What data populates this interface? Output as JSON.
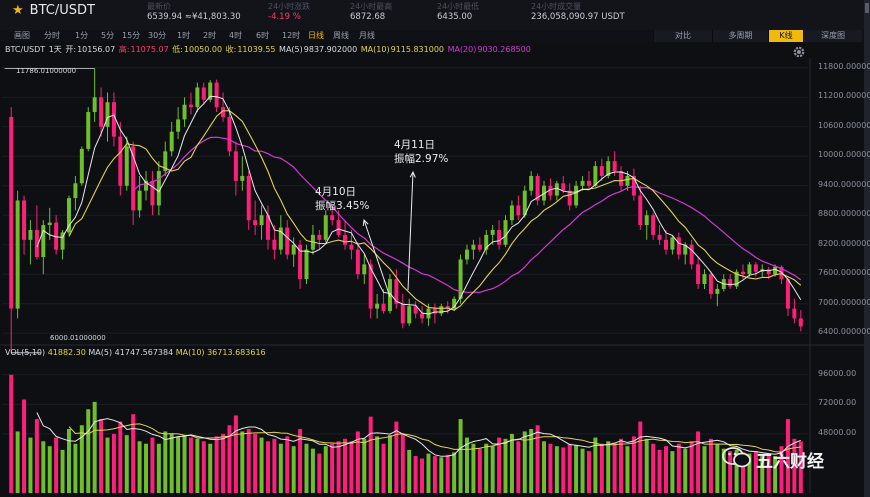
{
  "header": {
    "symbol": "BTC/USDT",
    "stats": [
      {
        "label": "最新价",
        "value": "6539.94 ≈¥41,803.30",
        "down": false
      },
      {
        "label": "24小时涨跌",
        "value": "-4.19 %",
        "down": true
      },
      {
        "label": "24小时最高",
        "value": "6872.68",
        "down": false
      },
      {
        "label": "24小时最低",
        "value": "6435.00",
        "down": false
      },
      {
        "label": "24小时成交量",
        "value": "236,058,090.97 USDT",
        "down": false
      }
    ]
  },
  "toolbar": {
    "intervals": [
      "分时",
      "1分",
      "5分",
      "15分",
      "30分",
      "1时",
      "2时",
      "4时",
      "6时",
      "12时",
      "日线",
      "周线",
      "月线"
    ],
    "active_interval": "日线",
    "view_tabs": [
      "对比",
      "多周期",
      "K线",
      "深度图"
    ],
    "active_view": "K线",
    "first_tab": "画图"
  },
  "legend": {
    "pair": "BTC/USDT",
    "period": "1天",
    "open_label": "开:",
    "open": "10156.07",
    "high_label": "高:",
    "high": "11075.07",
    "low_label": "低:",
    "low": "10050.00",
    "close_label": "收:",
    "close": "11039.55",
    "ma5_label": "MA(5)",
    "ma5": "9837.902000",
    "ma10_label": "MA(10)",
    "ma10": "9115.831000",
    "ma20_label": "MA(20)",
    "ma20": "9030.268500"
  },
  "vol_legend": {
    "label": "VOL(5,10)",
    "vol": "41882.30",
    "ma5_label": "MA(5)",
    "ma5": "41747.567384",
    "ma10_label": "MA(10)",
    "ma10": "36713.683616"
  },
  "price_marks": {
    "max": "11786.01000000",
    "min": "6000.01000000"
  },
  "annotations": [
    {
      "line1": "4月10日",
      "line2": "振幅3.45%"
    },
    {
      "line1": "4月11日",
      "line2": "振幅2.97%"
    }
  ],
  "watermark": "五六财经",
  "colors": {
    "up": "#6fbf2c",
    "down": "#ff1f7a",
    "ma5": "#e8e8e8",
    "ma10": "#e0d44a",
    "ma20": "#d43ad4",
    "accent": "#f0b90b"
  },
  "chart_data": {
    "type": "candlestick",
    "y_axis": {
      "ticks": [
        "11800.000000",
        "11200.000000",
        "10600.000000",
        "10000.000000",
        "9400.000000",
        "8800.000000",
        "8200.000000",
        "7600.000000",
        "7000.000000",
        "6400.000000"
      ],
      "min": 6200,
      "max": 12000
    },
    "volume_axis": {
      "ticks": [
        "96000.00",
        "72000.00",
        "48000.00"
      ],
      "max": 108000
    },
    "candles": [
      {
        "o": 10800,
        "h": 11000,
        "l": 6000,
        "c": 6900,
        "v": 96000
      },
      {
        "o": 6900,
        "h": 9300,
        "l": 6700,
        "c": 9100,
        "v": 50000
      },
      {
        "o": 9100,
        "h": 9200,
        "l": 8000,
        "c": 8300,
        "v": 76000
      },
      {
        "o": 8300,
        "h": 8700,
        "l": 7800,
        "c": 8500,
        "v": 45000
      },
      {
        "o": 8500,
        "h": 9000,
        "l": 7900,
        "c": 7950,
        "v": 60000
      },
      {
        "o": 7950,
        "h": 8700,
        "l": 7600,
        "c": 8600,
        "v": 42000
      },
      {
        "o": 8600,
        "h": 8950,
        "l": 8300,
        "c": 8650,
        "v": 38000
      },
      {
        "o": 8650,
        "h": 8800,
        "l": 8000,
        "c": 8100,
        "v": 45000
      },
      {
        "o": 8100,
        "h": 8500,
        "l": 7900,
        "c": 8450,
        "v": 35000
      },
      {
        "o": 8450,
        "h": 9200,
        "l": 8400,
        "c": 9150,
        "v": 52000
      },
      {
        "o": 9150,
        "h": 9600,
        "l": 8900,
        "c": 9450,
        "v": 40000
      },
      {
        "o": 9450,
        "h": 10200,
        "l": 9400,
        "c": 10150,
        "v": 55000
      },
      {
        "o": 10150,
        "h": 11000,
        "l": 10100,
        "c": 10900,
        "v": 68000
      },
      {
        "o": 10900,
        "h": 11786,
        "l": 10700,
        "c": 11200,
        "v": 74000
      },
      {
        "o": 11200,
        "h": 11400,
        "l": 10400,
        "c": 10600,
        "v": 60000
      },
      {
        "o": 10600,
        "h": 11300,
        "l": 10300,
        "c": 11100,
        "v": 45000
      },
      {
        "o": 11100,
        "h": 11300,
        "l": 10200,
        "c": 10400,
        "v": 48000
      },
      {
        "o": 10400,
        "h": 10700,
        "l": 9200,
        "c": 9400,
        "v": 58000
      },
      {
        "o": 9400,
        "h": 10400,
        "l": 9300,
        "c": 10200,
        "v": 47000
      },
      {
        "o": 10200,
        "h": 10300,
        "l": 8600,
        "c": 8900,
        "v": 64000
      },
      {
        "o": 8900,
        "h": 9600,
        "l": 8750,
        "c": 9300,
        "v": 42000
      },
      {
        "o": 9300,
        "h": 9700,
        "l": 9100,
        "c": 9500,
        "v": 40000
      },
      {
        "o": 9500,
        "h": 9700,
        "l": 8800,
        "c": 9000,
        "v": 45000
      },
      {
        "o": 9000,
        "h": 9900,
        "l": 8800,
        "c": 9700,
        "v": 40000
      },
      {
        "o": 9700,
        "h": 10300,
        "l": 9600,
        "c": 10100,
        "v": 50000
      },
      {
        "o": 10100,
        "h": 10700,
        "l": 10000,
        "c": 10500,
        "v": 48000
      },
      {
        "o": 10500,
        "h": 11000,
        "l": 10350,
        "c": 10750,
        "v": 46000
      },
      {
        "o": 10750,
        "h": 11200,
        "l": 10600,
        "c": 11050,
        "v": 47000
      },
      {
        "o": 11050,
        "h": 11300,
        "l": 10850,
        "c": 11000,
        "v": 45000
      },
      {
        "o": 11000,
        "h": 11500,
        "l": 10900,
        "c": 11400,
        "v": 44000
      },
      {
        "o": 11400,
        "h": 11500,
        "l": 11050,
        "c": 11150,
        "v": 42000
      },
      {
        "o": 11150,
        "h": 11550,
        "l": 11100,
        "c": 11500,
        "v": 40000
      },
      {
        "o": 11500,
        "h": 11560,
        "l": 10900,
        "c": 11000,
        "v": 46000
      },
      {
        "o": 11000,
        "h": 11300,
        "l": 10700,
        "c": 10800,
        "v": 48000
      },
      {
        "o": 10800,
        "h": 11000,
        "l": 10000,
        "c": 10100,
        "v": 55000
      },
      {
        "o": 10100,
        "h": 10300,
        "l": 9200,
        "c": 9500,
        "v": 63000
      },
      {
        "o": 9500,
        "h": 10000,
        "l": 9300,
        "c": 9600,
        "v": 50000
      },
      {
        "o": 9600,
        "h": 9700,
        "l": 8500,
        "c": 8700,
        "v": 52000
      },
      {
        "o": 8700,
        "h": 9100,
        "l": 8400,
        "c": 8600,
        "v": 48000
      },
      {
        "o": 8600,
        "h": 9000,
        "l": 8300,
        "c": 8800,
        "v": 45000
      },
      {
        "o": 8800,
        "h": 9000,
        "l": 8100,
        "c": 8300,
        "v": 42000
      },
      {
        "o": 8300,
        "h": 8600,
        "l": 7900,
        "c": 8100,
        "v": 44000
      },
      {
        "o": 8100,
        "h": 8800,
        "l": 8000,
        "c": 8550,
        "v": 40000
      },
      {
        "o": 8550,
        "h": 8700,
        "l": 7900,
        "c": 8000,
        "v": 46000
      },
      {
        "o": 8000,
        "h": 8350,
        "l": 7750,
        "c": 8200,
        "v": 38000
      },
      {
        "o": 8200,
        "h": 8300,
        "l": 7300,
        "c": 7500,
        "v": 52000
      },
      {
        "o": 7500,
        "h": 8200,
        "l": 7400,
        "c": 8100,
        "v": 40000
      },
      {
        "o": 8100,
        "h": 8600,
        "l": 8000,
        "c": 8400,
        "v": 36000
      },
      {
        "o": 8400,
        "h": 8500,
        "l": 8100,
        "c": 8300,
        "v": 32000
      },
      {
        "o": 8300,
        "h": 8900,
        "l": 8250,
        "c": 8800,
        "v": 38000
      },
      {
        "o": 8800,
        "h": 8950,
        "l": 8600,
        "c": 8700,
        "v": 40000
      },
      {
        "o": 8700,
        "h": 8900,
        "l": 8350,
        "c": 8400,
        "v": 42000
      },
      {
        "o": 8400,
        "h": 8700,
        "l": 8100,
        "c": 8200,
        "v": 44000
      },
      {
        "o": 8200,
        "h": 8500,
        "l": 7900,
        "c": 8100,
        "v": 42000
      },
      {
        "o": 8100,
        "h": 8250,
        "l": 7500,
        "c": 7600,
        "v": 50000
      },
      {
        "o": 7600,
        "h": 8000,
        "l": 7400,
        "c": 7800,
        "v": 44000
      },
      {
        "o": 7800,
        "h": 7900,
        "l": 6700,
        "c": 6900,
        "v": 62000
      },
      {
        "o": 6900,
        "h": 7200,
        "l": 6700,
        "c": 7000,
        "v": 46000
      },
      {
        "o": 7000,
        "h": 7300,
        "l": 6800,
        "c": 6850,
        "v": 40000
      },
      {
        "o": 6850,
        "h": 7600,
        "l": 6800,
        "c": 7500,
        "v": 47000
      },
      {
        "o": 7500,
        "h": 7700,
        "l": 6900,
        "c": 7000,
        "v": 58000
      },
      {
        "o": 7000,
        "h": 7200,
        "l": 6500,
        "c": 6600,
        "v": 48000
      },
      {
        "o": 6600,
        "h": 7100,
        "l": 6550,
        "c": 6950,
        "v": 35000
      },
      {
        "o": 6950,
        "h": 7050,
        "l": 6700,
        "c": 6800,
        "v": 30000
      },
      {
        "o": 6800,
        "h": 6950,
        "l": 6600,
        "c": 6700,
        "v": 28000
      },
      {
        "o": 6700,
        "h": 7000,
        "l": 6550,
        "c": 6900,
        "v": 32000
      },
      {
        "o": 6900,
        "h": 7000,
        "l": 6600,
        "c": 6800,
        "v": 30000
      },
      {
        "o": 6800,
        "h": 7000,
        "l": 6750,
        "c": 6950,
        "v": 29000
      },
      {
        "o": 6950,
        "h": 7050,
        "l": 6800,
        "c": 6900,
        "v": 31000
      },
      {
        "o": 6900,
        "h": 7150,
        "l": 6850,
        "c": 7100,
        "v": 33000
      },
      {
        "o": 7100,
        "h": 8000,
        "l": 7000,
        "c": 7900,
        "v": 60000
      },
      {
        "o": 7900,
        "h": 8200,
        "l": 7800,
        "c": 8100,
        "v": 45000
      },
      {
        "o": 8100,
        "h": 8300,
        "l": 7900,
        "c": 8200,
        "v": 40000
      },
      {
        "o": 8200,
        "h": 8350,
        "l": 8050,
        "c": 8100,
        "v": 36000
      },
      {
        "o": 8100,
        "h": 8500,
        "l": 8000,
        "c": 8400,
        "v": 40000
      },
      {
        "o": 8400,
        "h": 8600,
        "l": 8200,
        "c": 8500,
        "v": 38000
      },
      {
        "o": 8500,
        "h": 8700,
        "l": 8100,
        "c": 8200,
        "v": 45000
      },
      {
        "o": 8200,
        "h": 8800,
        "l": 8150,
        "c": 8700,
        "v": 44000
      },
      {
        "o": 8700,
        "h": 9100,
        "l": 8600,
        "c": 9000,
        "v": 48000
      },
      {
        "o": 9000,
        "h": 9200,
        "l": 8700,
        "c": 8800,
        "v": 42000
      },
      {
        "o": 8800,
        "h": 9400,
        "l": 8750,
        "c": 9300,
        "v": 50000
      },
      {
        "o": 9300,
        "h": 9700,
        "l": 9200,
        "c": 9600,
        "v": 52000
      },
      {
        "o": 9600,
        "h": 9650,
        "l": 9000,
        "c": 9100,
        "v": 55000
      },
      {
        "o": 9100,
        "h": 9500,
        "l": 9000,
        "c": 9400,
        "v": 42000
      },
      {
        "o": 9400,
        "h": 9550,
        "l": 9100,
        "c": 9200,
        "v": 40000
      },
      {
        "o": 9200,
        "h": 9500,
        "l": 9100,
        "c": 9450,
        "v": 38000
      },
      {
        "o": 9450,
        "h": 9600,
        "l": 9250,
        "c": 9300,
        "v": 37000
      },
      {
        "o": 9300,
        "h": 9450,
        "l": 8900,
        "c": 9000,
        "v": 40000
      },
      {
        "o": 9000,
        "h": 9500,
        "l": 8950,
        "c": 9400,
        "v": 39000
      },
      {
        "o": 9400,
        "h": 9600,
        "l": 9300,
        "c": 9500,
        "v": 36000
      },
      {
        "o": 9500,
        "h": 9700,
        "l": 9350,
        "c": 9400,
        "v": 34000
      },
      {
        "o": 9400,
        "h": 9900,
        "l": 9380,
        "c": 9800,
        "v": 45000
      },
      {
        "o": 9800,
        "h": 9950,
        "l": 9500,
        "c": 9600,
        "v": 40000
      },
      {
        "o": 9600,
        "h": 10000,
        "l": 9550,
        "c": 9900,
        "v": 42000
      },
      {
        "o": 9900,
        "h": 10100,
        "l": 9600,
        "c": 9700,
        "v": 41000
      },
      {
        "o": 9700,
        "h": 9800,
        "l": 9300,
        "c": 9400,
        "v": 44000
      },
      {
        "o": 9400,
        "h": 9700,
        "l": 9300,
        "c": 9600,
        "v": 38000
      },
      {
        "o": 9600,
        "h": 9750,
        "l": 9100,
        "c": 9200,
        "v": 46000
      },
      {
        "o": 9200,
        "h": 9400,
        "l": 8500,
        "c": 8600,
        "v": 58000
      },
      {
        "o": 8600,
        "h": 8900,
        "l": 8300,
        "c": 8800,
        "v": 44000
      },
      {
        "o": 8800,
        "h": 8850,
        "l": 8300,
        "c": 8400,
        "v": 40000
      },
      {
        "o": 8400,
        "h": 8600,
        "l": 8200,
        "c": 8300,
        "v": 35000
      },
      {
        "o": 8300,
        "h": 8500,
        "l": 8000,
        "c": 8100,
        "v": 38000
      },
      {
        "o": 8100,
        "h": 8400,
        "l": 8000,
        "c": 8350,
        "v": 34000
      },
      {
        "o": 8350,
        "h": 8450,
        "l": 7900,
        "c": 8000,
        "v": 40000
      },
      {
        "o": 8000,
        "h": 8250,
        "l": 7800,
        "c": 8200,
        "v": 36000
      },
      {
        "o": 8200,
        "h": 8300,
        "l": 7700,
        "c": 7800,
        "v": 42000
      },
      {
        "o": 7800,
        "h": 7950,
        "l": 7300,
        "c": 7400,
        "v": 50000
      },
      {
        "o": 7400,
        "h": 7700,
        "l": 7300,
        "c": 7600,
        "v": 38000
      },
      {
        "o": 7600,
        "h": 7650,
        "l": 7100,
        "c": 7200,
        "v": 44000
      },
      {
        "o": 7200,
        "h": 7400,
        "l": 6950,
        "c": 7300,
        "v": 40000
      },
      {
        "o": 7300,
        "h": 7600,
        "l": 7250,
        "c": 7500,
        "v": 36000
      },
      {
        "o": 7500,
        "h": 7600,
        "l": 7300,
        "c": 7350,
        "v": 34000
      },
      {
        "o": 7350,
        "h": 7700,
        "l": 7300,
        "c": 7650,
        "v": 35000
      },
      {
        "o": 7650,
        "h": 7800,
        "l": 7500,
        "c": 7600,
        "v": 33000
      },
      {
        "o": 7600,
        "h": 7850,
        "l": 7550,
        "c": 7800,
        "v": 32000
      },
      {
        "o": 7800,
        "h": 7850,
        "l": 7550,
        "c": 7650,
        "v": 34000
      },
      {
        "o": 7650,
        "h": 7800,
        "l": 7550,
        "c": 7700,
        "v": 30000
      },
      {
        "o": 7700,
        "h": 7750,
        "l": 7500,
        "c": 7600,
        "v": 31000
      },
      {
        "o": 7600,
        "h": 7800,
        "l": 7550,
        "c": 7750,
        "v": 30000
      },
      {
        "o": 7750,
        "h": 7780,
        "l": 7400,
        "c": 7500,
        "v": 38000
      },
      {
        "o": 7500,
        "h": 7550,
        "l": 6750,
        "c": 6900,
        "v": 60000
      },
      {
        "o": 6900,
        "h": 7100,
        "l": 6600,
        "c": 6700,
        "v": 44000
      },
      {
        "o": 6700,
        "h": 6870,
        "l": 6435,
        "c": 6540,
        "v": 41882
      }
    ]
  }
}
